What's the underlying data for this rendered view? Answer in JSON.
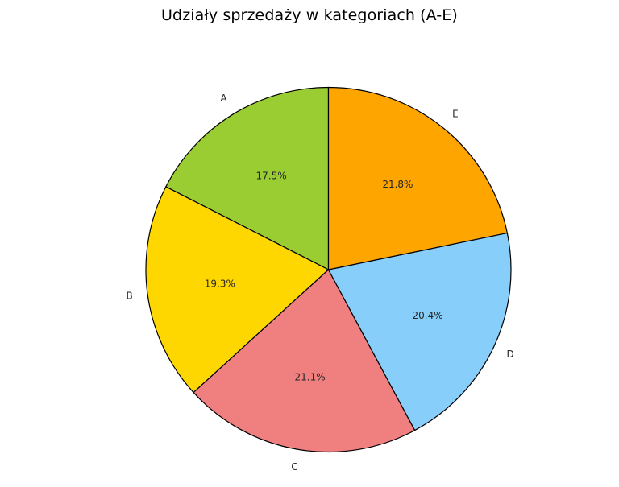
{
  "chart_data": {
    "type": "pie",
    "title": "Udziały sprzedaży w kategoriach (A-E)",
    "categories": [
      "A",
      "B",
      "C",
      "D",
      "E"
    ],
    "values": [
      17.5,
      19.3,
      21.1,
      20.4,
      21.8
    ],
    "value_format": "percent",
    "colors": [
      "#9ACD32",
      "#FFD700",
      "#F08080",
      "#87CEFA",
      "#FFA500"
    ],
    "start_angle": 90,
    "direction": "counterclockwise",
    "edgecolor": "#000000",
    "legend": null
  },
  "labels": {
    "title": "Udziały sprzedaży w kategoriach (A-E)",
    "slices": [
      {
        "name": "A",
        "pct": "17.5%"
      },
      {
        "name": "B",
        "pct": "19.3%"
      },
      {
        "name": "C",
        "pct": "21.1%"
      },
      {
        "name": "D",
        "pct": "20.4%"
      },
      {
        "name": "E",
        "pct": "21.8%"
      }
    ]
  }
}
